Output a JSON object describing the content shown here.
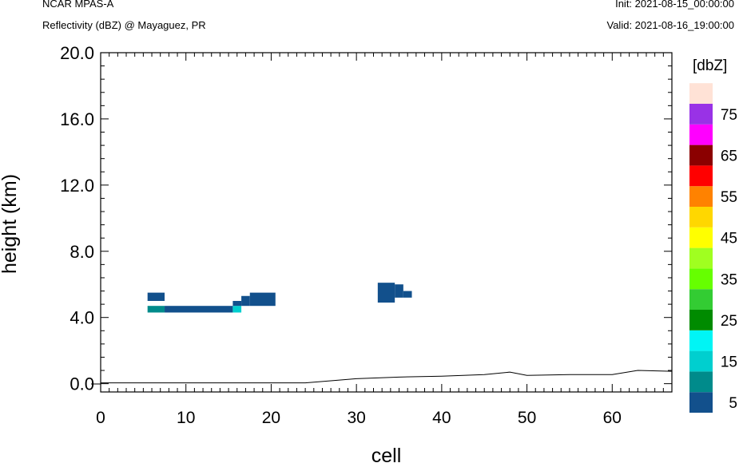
{
  "header": {
    "left_line1": "NCAR MPAS-A",
    "left_line2": "Reflectivity (dBZ) @ Mayaguez, PR",
    "right_line1": "Init: 2021-08-15_00:00:00",
    "right_line2": "Valid: 2021-08-16_19:00:00"
  },
  "chart_data": {
    "type": "heatmap",
    "xlabel": "cell",
    "ylabel": "height (km)",
    "xlim": [
      0,
      67
    ],
    "ylim": [
      -0.5,
      20
    ],
    "x_ticks": [
      0,
      10,
      20,
      30,
      40,
      50,
      60
    ],
    "y_ticks": [
      "0.0",
      "4.0",
      "8.0",
      "12.0",
      "16.0",
      "20.0"
    ],
    "colorbar": {
      "title": "[dbZ]",
      "labels": [
        "5",
        "15",
        "25",
        "35",
        "45",
        "55",
        "65",
        "75"
      ],
      "colors": [
        "#12508c",
        "#008b8b",
        "#00cfcf",
        "#00f5f5",
        "#008b00",
        "#33cc33",
        "#66ff00",
        "#a0ff20",
        "#ffff00",
        "#ffd700",
        "#ff8200",
        "#ff0000",
        "#8b0000",
        "#ff00ff",
        "#9932e6",
        "#ffe2d6"
      ]
    },
    "cells": [
      {
        "x0": 5.5,
        "x1": 7.5,
        "y0": 5.0,
        "y1": 5.5,
        "dbz": 5
      },
      {
        "x0": 5.5,
        "x1": 7.5,
        "y0": 4.3,
        "y1": 4.7,
        "dbz": 10
      },
      {
        "x0": 7.5,
        "x1": 15.5,
        "y0": 4.3,
        "y1": 4.7,
        "dbz": 5
      },
      {
        "x0": 15.5,
        "x1": 16.5,
        "y0": 4.3,
        "y1": 4.7,
        "dbz": 15
      },
      {
        "x0": 15.5,
        "x1": 16.5,
        "y0": 4.7,
        "y1": 5.0,
        "dbz": 5
      },
      {
        "x0": 16.5,
        "x1": 17.5,
        "y0": 4.7,
        "y1": 5.3,
        "dbz": 5
      },
      {
        "x0": 17.5,
        "x1": 20.5,
        "y0": 4.7,
        "y1": 5.5,
        "dbz": 5
      },
      {
        "x0": 32.5,
        "x1": 34.5,
        "y0": 4.9,
        "y1": 6.1,
        "dbz": 5
      },
      {
        "x0": 34.5,
        "x1": 35.5,
        "y0": 5.2,
        "y1": 6.0,
        "dbz": 5
      },
      {
        "x0": 35.5,
        "x1": 36.5,
        "y0": 5.2,
        "y1": 5.6,
        "dbz": 5
      }
    ],
    "terrain": {
      "x": [
        0,
        24,
        30,
        35,
        40,
        45,
        48,
        50,
        55,
        60,
        63,
        67
      ],
      "y": [
        0.05,
        0.05,
        0.3,
        0.4,
        0.45,
        0.55,
        0.7,
        0.5,
        0.55,
        0.55,
        0.8,
        0.75
      ]
    }
  }
}
